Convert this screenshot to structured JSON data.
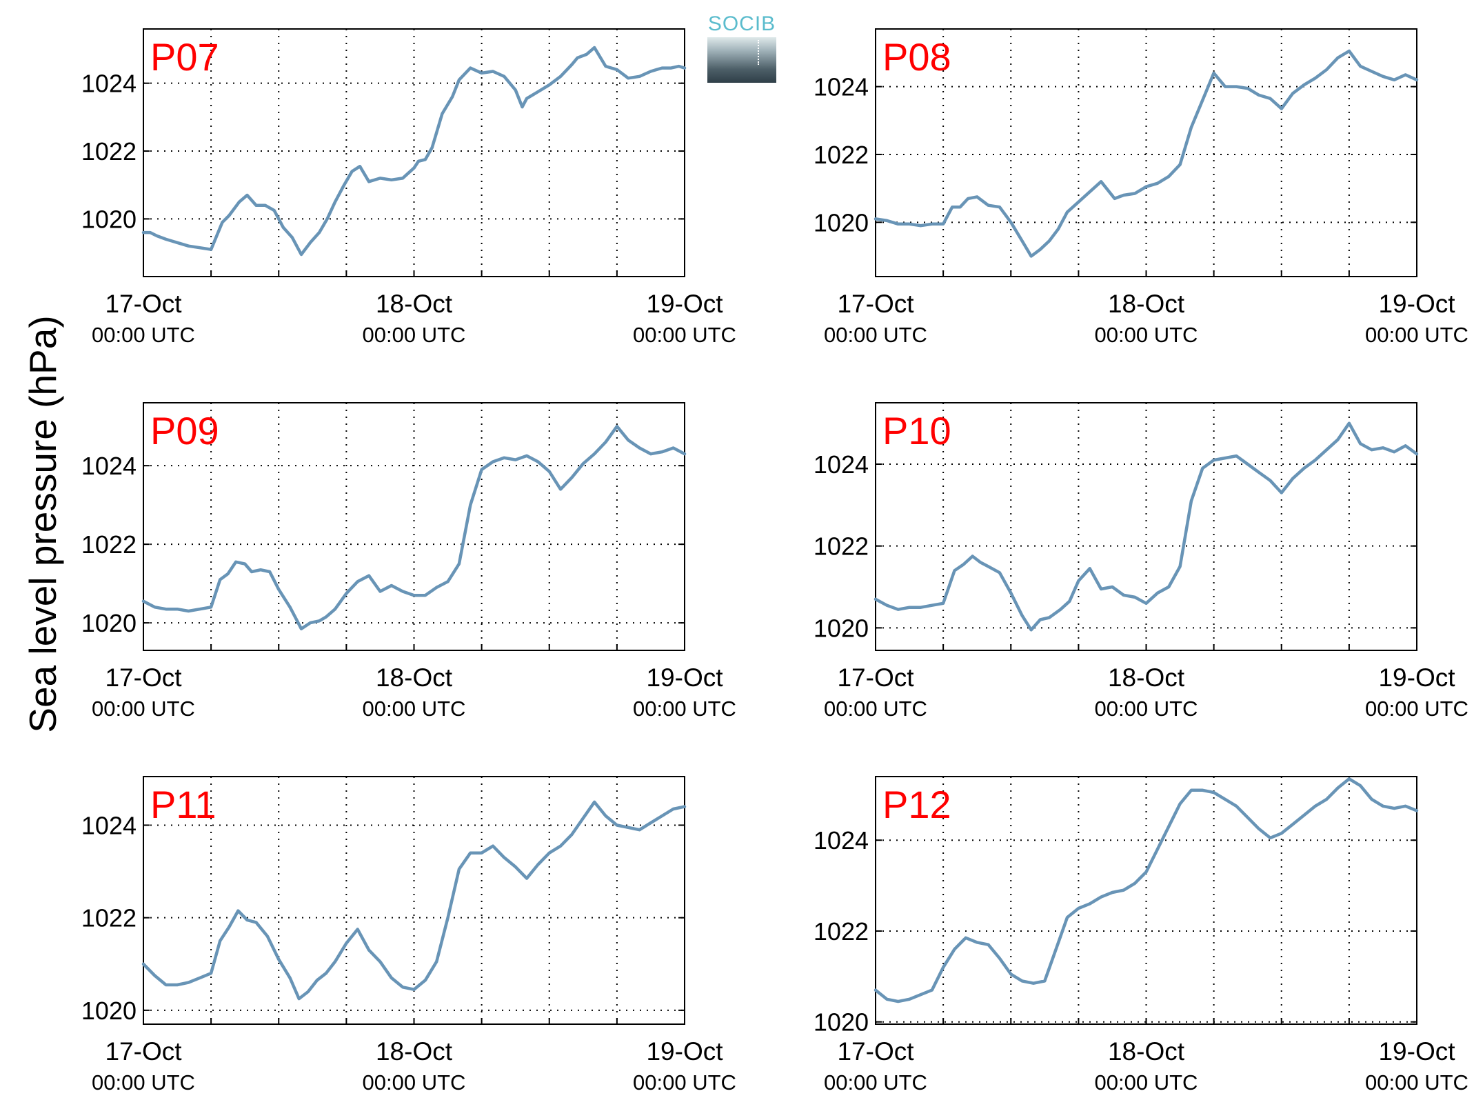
{
  "figure": {
    "ylabel": "Sea level pressure (hPa)",
    "logo_text": "SOCIB",
    "line_color": "#6894b6",
    "label_color": "#ff0000"
  },
  "chart_data": [
    {
      "type": "line",
      "title": "P07",
      "x_ticks": [
        {
          "line1": "17-Oct",
          "line2": "00:00 UTC"
        },
        {
          "line1": "18-Oct",
          "line2": "00:00 UTC"
        },
        {
          "line1": "19-Oct",
          "line2": "00:00 UTC"
        }
      ],
      "xlim": [
        0,
        48
      ],
      "ylim": [
        1018.3,
        1025.6
      ],
      "y_ticks": [
        1020,
        1022,
        1024
      ],
      "series": [
        {
          "x": [
            0,
            0.6,
            1.2,
            2,
            3,
            4,
            5,
            6,
            6.5,
            7,
            7.6,
            8.5,
            9.2,
            10,
            10.8,
            11.6,
            12.4,
            13.2,
            14,
            14.8,
            15.6,
            16.3,
            17,
            17.8,
            18.5,
            19.2,
            20,
            21,
            22,
            23,
            24,
            24.4,
            25,
            25.6,
            26.5,
            27.4,
            28,
            29,
            30,
            31,
            32,
            33,
            33.6,
            34,
            34.5,
            35,
            36,
            37,
            38,
            38.5,
            39.3,
            40,
            41,
            42,
            43,
            44,
            45,
            45.5,
            46,
            46.8,
            47.5,
            48
          ],
          "y": [
            1019.6,
            1019.6,
            1019.5,
            1019.4,
            1019.3,
            1019.2,
            1019.15,
            1019.1,
            1019.5,
            1019.9,
            1020.1,
            1020.5,
            1020.7,
            1020.4,
            1020.4,
            1020.25,
            1019.75,
            1019.45,
            1018.95,
            1019.3,
            1019.6,
            1020,
            1020.5,
            1021,
            1021.4,
            1021.55,
            1021.1,
            1021.2,
            1021.15,
            1021.2,
            1021.5,
            1021.7,
            1021.75,
            1022.1,
            1023.1,
            1023.6,
            1024.1,
            1024.45,
            1024.3,
            1024.35,
            1024.2,
            1023.8,
            1023.3,
            1023.55,
            1023.65,
            1023.75,
            1023.95,
            1024.2,
            1024.55,
            1024.75,
            1024.85,
            1025.05,
            1024.5,
            1024.4,
            1024.15,
            1024.2,
            1024.35,
            1024.4,
            1024.45,
            1024.45,
            1024.5,
            1024.45
          ]
        }
      ]
    },
    {
      "type": "line",
      "title": "P08",
      "x_ticks": [
        {
          "line1": "17-Oct",
          "line2": "00:00 UTC"
        },
        {
          "line1": "18-Oct",
          "line2": "00:00 UTC"
        },
        {
          "line1": "19-Oct",
          "line2": "00:00 UTC"
        }
      ],
      "xlim": [
        0,
        48
      ],
      "ylim": [
        1018.4,
        1025.7
      ],
      "y_ticks": [
        1020,
        1022,
        1024
      ],
      "series": [
        {
          "x": [
            0,
            1,
            2,
            3,
            4,
            5,
            6,
            6.8,
            7.5,
            8.2,
            9,
            10,
            11,
            12,
            13,
            13.8,
            14.6,
            15.4,
            16.2,
            17,
            18,
            19,
            20,
            21.2,
            22,
            23,
            24,
            25,
            26,
            27,
            28,
            29,
            30,
            31,
            32,
            33,
            34,
            35,
            36,
            37,
            38,
            39,
            40,
            41,
            42,
            43,
            44,
            45,
            46,
            47,
            48
          ],
          "y": [
            1020.1,
            1020.05,
            1019.95,
            1019.95,
            1019.9,
            1019.95,
            1019.95,
            1020.45,
            1020.45,
            1020.7,
            1020.75,
            1020.5,
            1020.45,
            1020,
            1019.45,
            1019,
            1019.2,
            1019.45,
            1019.8,
            1020.3,
            1020.6,
            1020.9,
            1021.2,
            1020.7,
            1020.8,
            1020.85,
            1021.05,
            1021.15,
            1021.35,
            1021.7,
            1022.8,
            1023.6,
            1024.4,
            1024,
            1024,
            1023.95,
            1023.75,
            1023.65,
            1023.35,
            1023.8,
            1024.05,
            1024.25,
            1024.5,
            1024.85,
            1025.05,
            1024.6,
            1024.45,
            1024.3,
            1024.2,
            1024.35,
            1024.2
          ]
        }
      ]
    },
    {
      "type": "line",
      "title": "P09",
      "x_ticks": [
        {
          "line1": "17-Oct",
          "line2": "00:00 UTC"
        },
        {
          "line1": "18-Oct",
          "line2": "00:00 UTC"
        },
        {
          "line1": "19-Oct",
          "line2": "00:00 UTC"
        }
      ],
      "xlim": [
        0,
        48
      ],
      "ylim": [
        1019.3,
        1025.6
      ],
      "y_ticks": [
        1020,
        1022,
        1024
      ],
      "series": [
        {
          "x": [
            0,
            1,
            2,
            3,
            4,
            5,
            6,
            6.8,
            7.5,
            8.2,
            9,
            9.6,
            10.4,
            11.2,
            12,
            13,
            14,
            14.8,
            15.6,
            16.2,
            17,
            18,
            19,
            20,
            21,
            22,
            23,
            24,
            25,
            26,
            27,
            28,
            29,
            30,
            31,
            32,
            33,
            34,
            35,
            36,
            37,
            38,
            39,
            40,
            41,
            42,
            43,
            44,
            45,
            46,
            47,
            48
          ],
          "y": [
            1020.55,
            1020.4,
            1020.35,
            1020.35,
            1020.3,
            1020.35,
            1020.4,
            1021.1,
            1021.25,
            1021.55,
            1021.5,
            1021.3,
            1021.35,
            1021.3,
            1020.85,
            1020.4,
            1019.85,
            1020,
            1020.05,
            1020.15,
            1020.35,
            1020.75,
            1021.05,
            1021.2,
            1020.8,
            1020.95,
            1020.8,
            1020.7,
            1020.7,
            1020.9,
            1021.05,
            1021.5,
            1023,
            1023.9,
            1024.1,
            1024.2,
            1024.15,
            1024.25,
            1024.1,
            1023.85,
            1023.4,
            1023.7,
            1024.05,
            1024.3,
            1024.6,
            1025,
            1024.65,
            1024.45,
            1024.3,
            1024.35,
            1024.45,
            1024.3
          ]
        }
      ]
    },
    {
      "type": "line",
      "title": "P10",
      "x_ticks": [
        {
          "line1": "17-Oct",
          "line2": "00:00 UTC"
        },
        {
          "line1": "18-Oct",
          "line2": "00:00 UTC"
        },
        {
          "line1": "19-Oct",
          "line2": "00:00 UTC"
        }
      ],
      "xlim": [
        0,
        48
      ],
      "ylim": [
        1019.45,
        1025.5
      ],
      "y_ticks": [
        1020,
        1022,
        1024
      ],
      "series": [
        {
          "x": [
            0,
            1,
            2,
            3,
            4,
            5,
            6,
            7,
            7.8,
            8.6,
            9.3,
            10,
            11,
            12,
            13,
            13.8,
            14.6,
            15.4,
            16.4,
            17.2,
            18,
            19,
            20,
            21,
            22,
            23,
            24,
            25,
            26,
            27,
            28,
            29,
            30,
            31,
            32,
            33,
            34,
            35,
            36,
            37,
            38,
            39,
            40,
            41,
            42,
            43,
            44,
            45,
            46,
            47,
            48
          ],
          "y": [
            1020.7,
            1020.55,
            1020.45,
            1020.5,
            1020.5,
            1020.55,
            1020.6,
            1021.4,
            1021.55,
            1021.75,
            1021.6,
            1021.5,
            1021.35,
            1020.85,
            1020.3,
            1019.95,
            1020.2,
            1020.25,
            1020.45,
            1020.65,
            1021.15,
            1021.45,
            1020.95,
            1021,
            1020.8,
            1020.75,
            1020.6,
            1020.85,
            1021,
            1021.5,
            1023.1,
            1023.9,
            1024.1,
            1024.15,
            1024.2,
            1024,
            1023.8,
            1023.6,
            1023.3,
            1023.65,
            1023.9,
            1024.1,
            1024.35,
            1024.6,
            1025,
            1024.5,
            1024.35,
            1024.4,
            1024.3,
            1024.45,
            1024.25
          ]
        }
      ]
    },
    {
      "type": "line",
      "title": "P11",
      "x_ticks": [
        {
          "line1": "17-Oct",
          "line2": "00:00 UTC"
        },
        {
          "line1": "18-Oct",
          "line2": "00:00 UTC"
        },
        {
          "line1": "19-Oct",
          "line2": "00:00 UTC"
        }
      ],
      "xlim": [
        0,
        48
      ],
      "ylim": [
        1019.7,
        1025.05
      ],
      "y_ticks": [
        1020,
        1022,
        1024
      ],
      "series": [
        {
          "x": [
            0,
            1,
            2,
            3,
            4,
            5,
            6,
            6.8,
            7.6,
            8.4,
            9.2,
            10,
            11,
            12,
            13,
            13.8,
            14.6,
            15.4,
            16.2,
            17,
            18,
            19,
            20,
            21,
            22,
            23,
            24,
            25,
            26,
            27,
            28,
            29,
            30,
            31,
            32,
            33,
            34,
            35,
            36,
            37,
            38,
            39,
            40,
            41,
            42,
            43,
            44,
            45,
            46,
            47,
            48
          ],
          "y": [
            1021,
            1020.75,
            1020.55,
            1020.55,
            1020.6,
            1020.7,
            1020.8,
            1021.5,
            1021.8,
            1022.15,
            1021.95,
            1021.9,
            1021.6,
            1021.1,
            1020.7,
            1020.25,
            1020.4,
            1020.65,
            1020.8,
            1021.05,
            1021.45,
            1021.75,
            1021.3,
            1021.05,
            1020.7,
            1020.5,
            1020.45,
            1020.65,
            1021.05,
            1022,
            1023.05,
            1023.4,
            1023.4,
            1023.55,
            1023.3,
            1023.1,
            1022.85,
            1023.15,
            1023.4,
            1023.55,
            1023.8,
            1024.15,
            1024.5,
            1024.2,
            1024,
            1023.95,
            1023.9,
            1024.05,
            1024.2,
            1024.35,
            1024.4
          ]
        }
      ]
    },
    {
      "type": "line",
      "title": "P12",
      "x_ticks": [
        {
          "line1": "17-Oct",
          "line2": "00:00 UTC"
        },
        {
          "line1": "18-Oct",
          "line2": "00:00 UTC"
        },
        {
          "line1": "19-Oct",
          "line2": "00:00 UTC"
        }
      ],
      "xlim": [
        0,
        48
      ],
      "ylim": [
        1019.95,
        1025.4
      ],
      "y_ticks": [
        1020,
        1022,
        1024
      ],
      "series": [
        {
          "x": [
            0,
            1,
            2,
            3,
            4,
            5,
            6,
            7,
            8,
            9,
            10,
            11,
            12,
            13,
            14,
            15,
            16,
            17,
            18,
            19,
            20,
            21,
            22,
            23,
            24,
            25,
            26,
            27,
            28,
            29,
            30,
            31,
            32,
            33,
            34,
            35,
            36,
            37,
            38,
            39,
            40,
            41,
            42,
            43,
            44,
            45,
            46,
            47,
            48
          ],
          "y": [
            1020.7,
            1020.5,
            1020.45,
            1020.5,
            1020.6,
            1020.7,
            1021.2,
            1021.6,
            1021.85,
            1021.75,
            1021.7,
            1021.4,
            1021.05,
            1020.9,
            1020.85,
            1020.9,
            1021.6,
            1022.3,
            1022.5,
            1022.6,
            1022.75,
            1022.85,
            1022.9,
            1023.05,
            1023.3,
            1023.8,
            1024.3,
            1024.8,
            1025.1,
            1025.1,
            1025.05,
            1024.9,
            1024.75,
            1024.5,
            1024.25,
            1024.05,
            1024.15,
            1024.35,
            1024.55,
            1024.75,
            1024.9,
            1025.15,
            1025.35,
            1025.2,
            1024.9,
            1024.75,
            1024.7,
            1024.75,
            1024.65
          ]
        }
      ]
    }
  ]
}
